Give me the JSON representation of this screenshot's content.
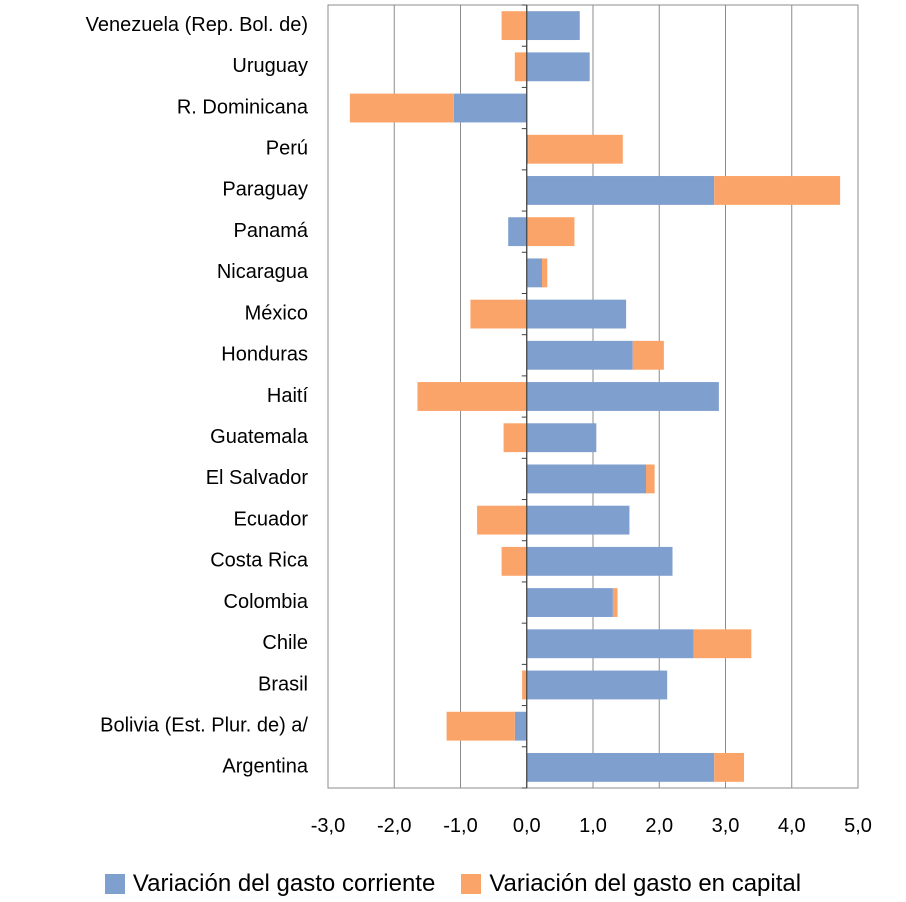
{
  "chart_data": {
    "type": "bar",
    "orientation": "horizontal",
    "stacked": true,
    "categories": [
      "Venezuela (Rep. Bol. de)",
      "Uruguay",
      "R. Dominicana",
      "Perú",
      "Paraguay",
      "Panamá",
      "Nicaragua",
      "México",
      "Honduras",
      "Haití",
      "Guatemala",
      "El Salvador",
      "Ecuador",
      "Costa Rica",
      "Colombia",
      "Chile",
      "Brasil",
      "Bolivia (Est. Plur. de) a/",
      "Argentina"
    ],
    "series": [
      {
        "name": "Variación del gasto corriente",
        "color": "#7f9fcf",
        "values": [
          0.8,
          0.95,
          -1.1,
          0.02,
          2.83,
          -0.28,
          0.23,
          1.5,
          1.6,
          2.9,
          1.05,
          1.8,
          1.55,
          2.2,
          1.3,
          2.52,
          2.12,
          -0.18,
          2.83
        ]
      },
      {
        "name": "Variación del gasto en capital",
        "color": "#fba46a",
        "values": [
          -0.38,
          -0.18,
          -1.57,
          1.43,
          1.9,
          0.72,
          0.08,
          -0.85,
          0.47,
          -1.65,
          -0.35,
          0.13,
          -0.75,
          -0.38,
          0.07,
          0.87,
          -0.07,
          -1.03,
          0.45
        ]
      }
    ],
    "xlim": [
      -3.0,
      5.0
    ],
    "xticks": [
      "-3,0",
      "-2,0",
      "-1,0",
      "0,0",
      "1,0",
      "2,0",
      "3,0",
      "4,0",
      "5,0"
    ],
    "grid": true,
    "legend_position": "bottom"
  }
}
